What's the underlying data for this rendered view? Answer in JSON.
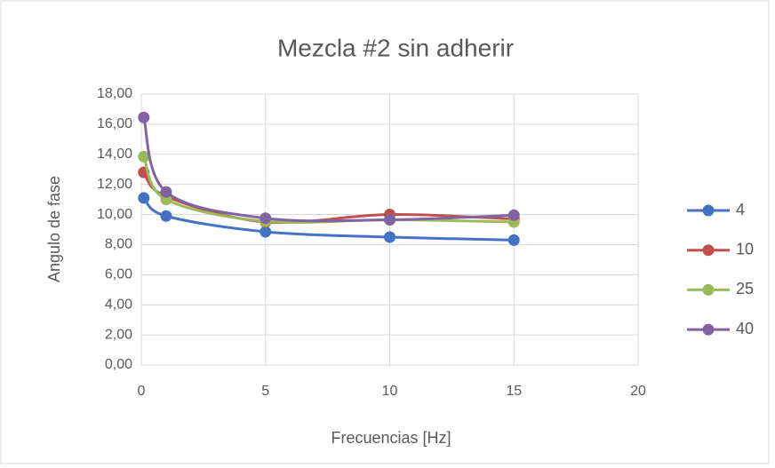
{
  "chart_data": {
    "type": "scatter",
    "title": "Mezcla #2 sin adherir",
    "x_label": "Frecuencias [Hz]",
    "y_label": "Angulo de fase",
    "x": [
      0.1,
      1,
      5,
      10,
      15
    ],
    "series": [
      {
        "name": "4",
        "color": "#4472c4",
        "values": [
          11.1,
          9.9,
          8.85,
          8.5,
          8.3
        ]
      },
      {
        "name": "10",
        "color": "#c0504d",
        "values": [
          12.8,
          11.2,
          9.5,
          10.0,
          9.7
        ]
      },
      {
        "name": "25",
        "color": "#9bbb59",
        "values": [
          13.85,
          11.0,
          9.55,
          9.65,
          9.5
        ]
      },
      {
        "name": "40",
        "color": "#8064a2",
        "values": [
          16.45,
          11.5,
          9.75,
          9.65,
          9.95
        ]
      }
    ],
    "xlim": [
      0,
      20
    ],
    "xticks": [
      0,
      5,
      10,
      15,
      20
    ],
    "ylim": [
      0,
      18
    ],
    "yticks": [
      {
        "value": 0,
        "label": "0,00"
      },
      {
        "value": 2,
        "label": "2,00"
      },
      {
        "value": 4,
        "label": "4,00"
      },
      {
        "value": 6,
        "label": "6,00"
      },
      {
        "value": 8,
        "label": "8,00"
      },
      {
        "value": 10,
        "label": "10,00"
      },
      {
        "value": 12,
        "label": "12,00"
      },
      {
        "value": 14,
        "label": "14,00"
      },
      {
        "value": 16,
        "label": "16,00"
      },
      {
        "value": 18,
        "label": "18,00"
      }
    ],
    "grid": true,
    "smooth": true,
    "legend": "right"
  }
}
